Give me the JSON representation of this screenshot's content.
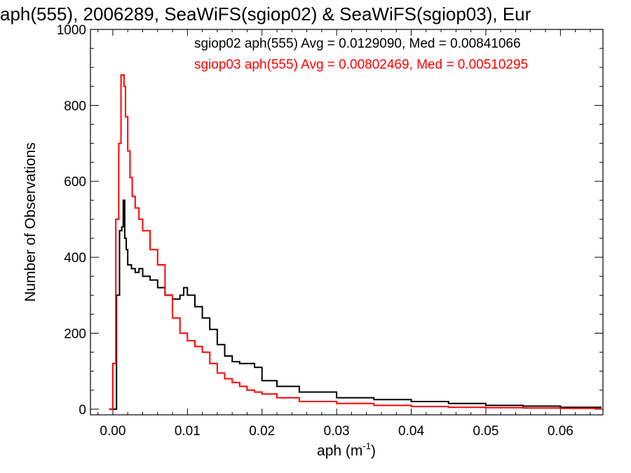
{
  "chart_data": {
    "type": "line",
    "step": true,
    "title": "aph(555), 2006289, SeaWiFS(sgiop02) & SeaWiFS(sgiop03), Eur",
    "xlabel": "aph (m",
    "xlabel_sup": "-1",
    "xlabel_close": ")",
    "ylabel": "Number of Observations",
    "xlim": [
      -0.003,
      0.0657
    ],
    "ylim": [
      -15,
      1000
    ],
    "xticks": [
      0.0,
      0.01,
      0.02,
      0.03,
      0.04,
      0.05,
      0.06
    ],
    "xtick_labels": [
      "0.00",
      "0.01",
      "0.02",
      "0.03",
      "0.04",
      "0.05",
      "0.06"
    ],
    "yticks": [
      0,
      200,
      400,
      600,
      800,
      1000
    ],
    "ytick_labels": [
      "0",
      "200",
      "400",
      "600",
      "800",
      "1000"
    ],
    "legend": {
      "placement": "top-right",
      "entries": [
        "sgiop02 aph(555) Avg = 0.0129090, Med = 0.00841066",
        "sgiop03 aph(555) Avg = 0.00802469, Med = 0.00510295"
      ]
    },
    "series": [
      {
        "color": "#000000",
        "x": [
          -0.0005,
          0.0005,
          0.0009,
          0.0012,
          0.0014,
          0.0016,
          0.0018,
          0.002,
          0.0025,
          0.003,
          0.0035,
          0.004,
          0.005,
          0.006,
          0.007,
          0.008,
          0.009,
          0.0095,
          0.01,
          0.011,
          0.012,
          0.013,
          0.014,
          0.015,
          0.016,
          0.017,
          0.018,
          0.019,
          0.02,
          0.022,
          0.025,
          0.03,
          0.033,
          0.035,
          0.04,
          0.045,
          0.05,
          0.055,
          0.06,
          0.0655
        ],
        "y": [
          0,
          300,
          470,
          480,
          550,
          450,
          420,
          380,
          370,
          360,
          370,
          350,
          340,
          320,
          300,
          290,
          300,
          320,
          300,
          270,
          240,
          210,
          170,
          140,
          125,
          120,
          120,
          110,
          75,
          60,
          45,
          30,
          30,
          25,
          20,
          15,
          10,
          8,
          5,
          5
        ]
      },
      {
        "color": "#ff0000",
        "x": [
          -0.0005,
          0.0,
          0.0004,
          0.0008,
          0.0011,
          0.0013,
          0.0015,
          0.0017,
          0.002,
          0.0023,
          0.0026,
          0.003,
          0.0035,
          0.004,
          0.005,
          0.006,
          0.007,
          0.008,
          0.009,
          0.01,
          0.011,
          0.012,
          0.013,
          0.014,
          0.015,
          0.016,
          0.017,
          0.018,
          0.019,
          0.02,
          0.022,
          0.025,
          0.03,
          0.035,
          0.04,
          0.045,
          0.05,
          0.055,
          0.06,
          0.0655
        ],
        "y": [
          0,
          120,
          500,
          700,
          880,
          880,
          850,
          770,
          680,
          610,
          560,
          530,
          500,
          470,
          420,
          380,
          300,
          240,
          200,
          180,
          165,
          150,
          120,
          95,
          80,
          70,
          60,
          50,
          45,
          40,
          30,
          20,
          15,
          10,
          7,
          5,
          4,
          3,
          2,
          2
        ]
      }
    ]
  }
}
